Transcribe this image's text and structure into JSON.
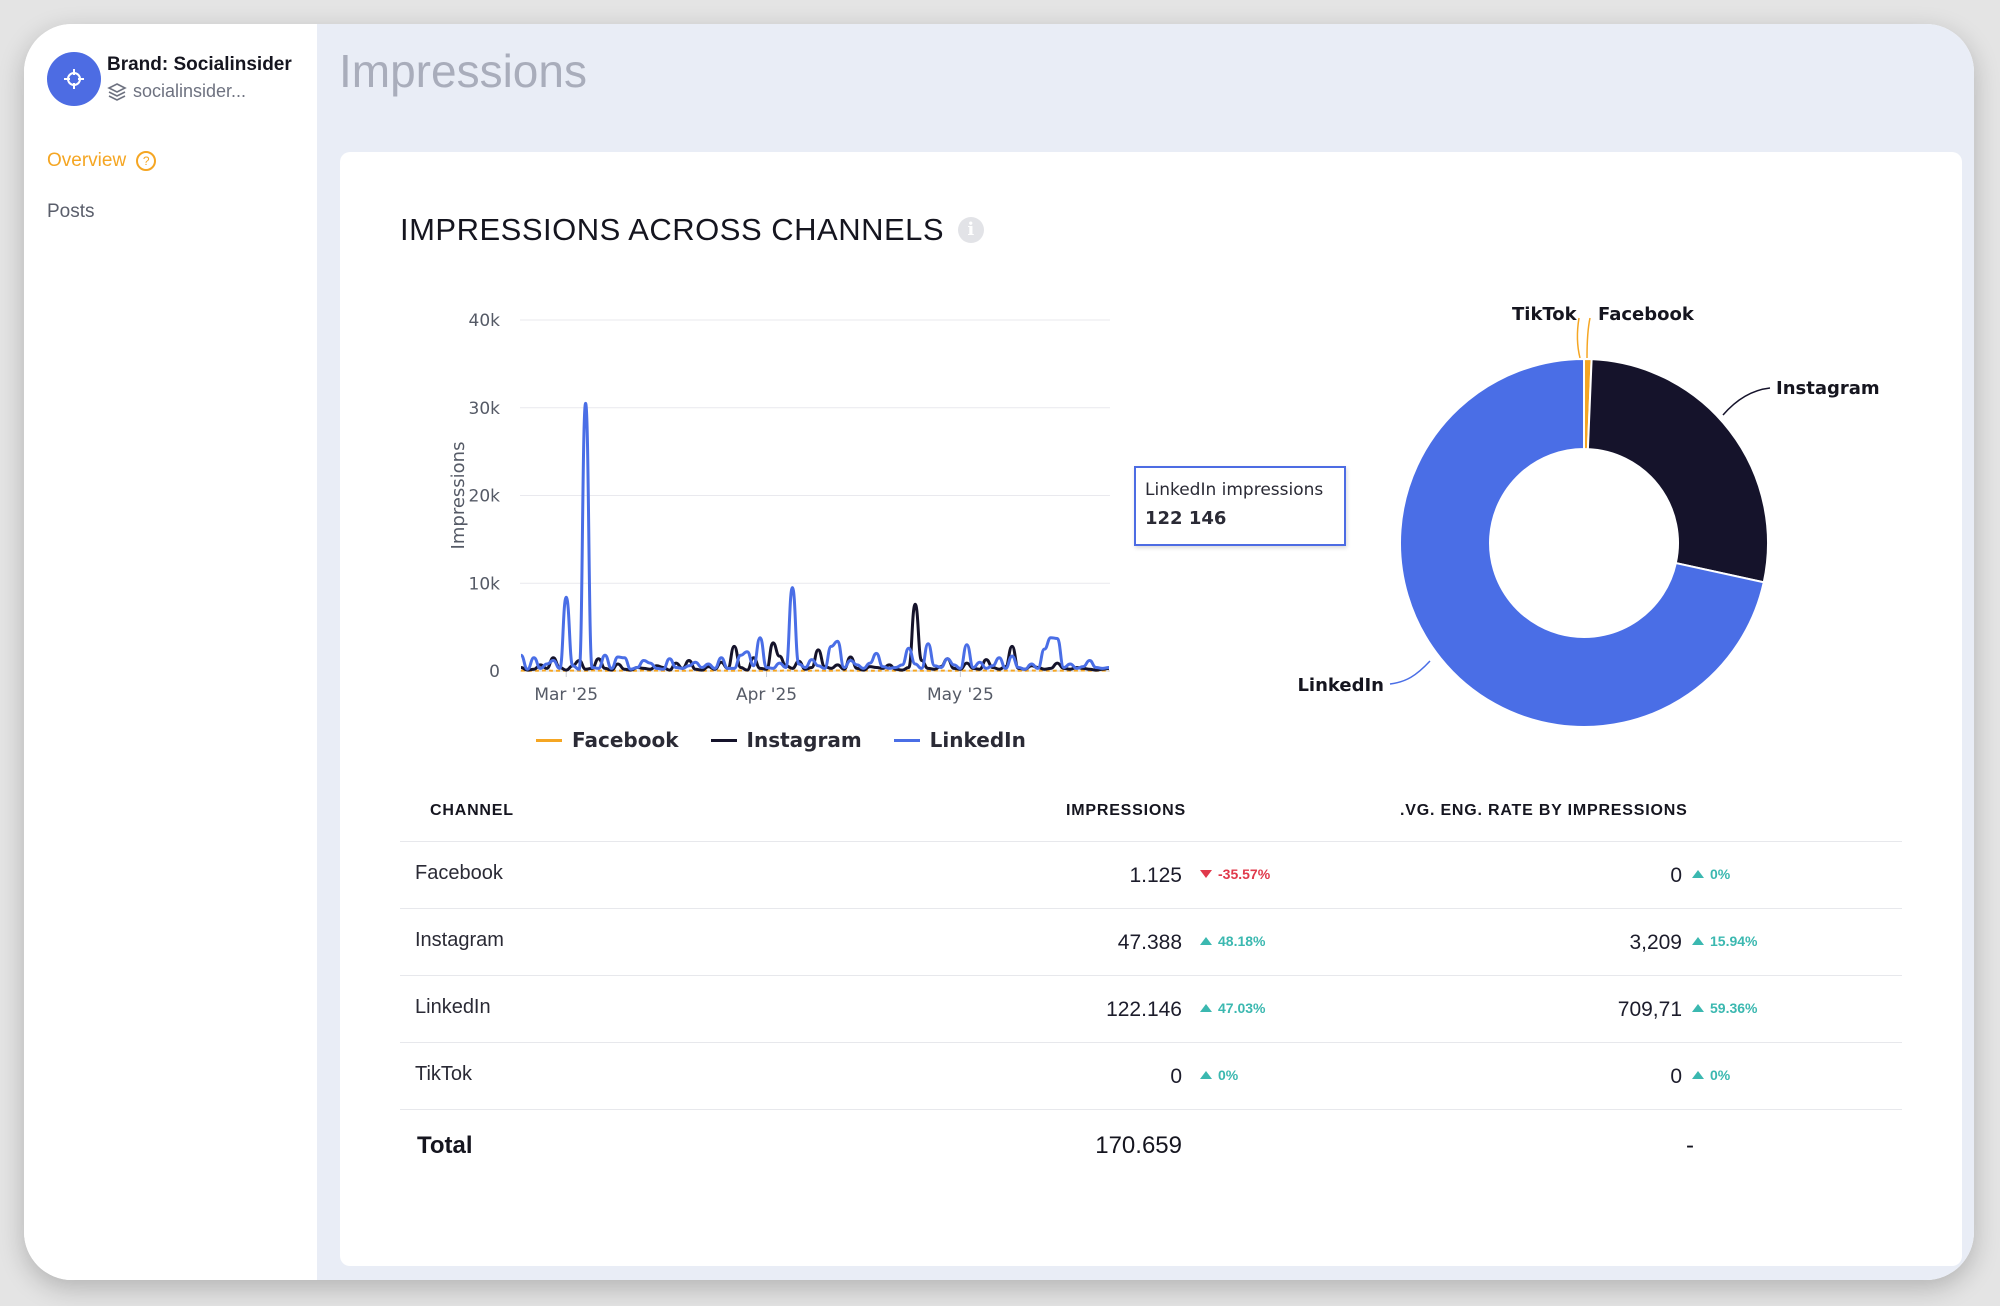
{
  "sidebar": {
    "brand_name": "Brand: Socialinsider",
    "brand_sub": "socialinsider...",
    "avatar_icon": "crosshair-icon",
    "items": [
      {
        "label": "Overview",
        "active": true,
        "icon": "help-circle-icon"
      },
      {
        "label": "Posts",
        "active": false
      }
    ]
  },
  "header": {
    "title": "Impressions"
  },
  "card": {
    "title": "IMPRESSIONS ACROSS CHANNELS",
    "info_icon": "info-icon"
  },
  "colors": {
    "facebook": "#f5a623",
    "instagram": "#15132b",
    "linkedin": "#4a6ee6",
    "tiktok": "#f5a623",
    "accent": "#f5a623",
    "up": "#3bb8b0",
    "down": "#e0394b"
  },
  "tooltip": {
    "label": "LinkedIn impressions",
    "value": "122 146"
  },
  "chart_data": [
    {
      "type": "line",
      "ylabel": "Impressions",
      "ylim": [
        0,
        40000
      ],
      "y_ticks": [
        "0",
        "10k",
        "20k",
        "30k",
        "40k"
      ],
      "x_ticks": [
        "Mar '25",
        "Apr '25",
        "May '25"
      ],
      "x_tick_index": [
        7,
        38,
        68
      ],
      "x": [
        "2025-02-22",
        "2025-02-23",
        "2025-02-24",
        "2025-02-25",
        "2025-02-26",
        "2025-02-27",
        "2025-02-28",
        "2025-03-01",
        "2025-03-02",
        "2025-03-03",
        "2025-03-04",
        "2025-03-05",
        "2025-03-06",
        "2025-03-07",
        "2025-03-08",
        "2025-03-09",
        "2025-03-10",
        "2025-03-11",
        "2025-03-12",
        "2025-03-13",
        "2025-03-14",
        "2025-03-15",
        "2025-03-16",
        "2025-03-17",
        "2025-03-18",
        "2025-03-19",
        "2025-03-20",
        "2025-03-21",
        "2025-03-22",
        "2025-03-23",
        "2025-03-24",
        "2025-03-25",
        "2025-03-26",
        "2025-03-27",
        "2025-03-28",
        "2025-03-29",
        "2025-03-30",
        "2025-03-31",
        "2025-04-01",
        "2025-04-02",
        "2025-04-03",
        "2025-04-04",
        "2025-04-05",
        "2025-04-06",
        "2025-04-07",
        "2025-04-08",
        "2025-04-09",
        "2025-04-10",
        "2025-04-11",
        "2025-04-12",
        "2025-04-13",
        "2025-04-14",
        "2025-04-15",
        "2025-04-16",
        "2025-04-17",
        "2025-04-18",
        "2025-04-19",
        "2025-04-20",
        "2025-04-21",
        "2025-04-22",
        "2025-04-23",
        "2025-04-24",
        "2025-04-25",
        "2025-04-26",
        "2025-04-27",
        "2025-04-28",
        "2025-04-29",
        "2025-04-30",
        "2025-05-01",
        "2025-05-02",
        "2025-05-03",
        "2025-05-04",
        "2025-05-05",
        "2025-05-06",
        "2025-05-07",
        "2025-05-08",
        "2025-05-09",
        "2025-05-10",
        "2025-05-11",
        "2025-05-12",
        "2025-05-13",
        "2025-05-14",
        "2025-05-15",
        "2025-05-16",
        "2025-05-17",
        "2025-05-18",
        "2025-05-19",
        "2025-05-20",
        "2025-05-21",
        "2025-05-22",
        "2025-05-23",
        "2025-05-24"
      ],
      "series": [
        {
          "name": "Facebook",
          "values": [
            50,
            30,
            20,
            40,
            60,
            30,
            20,
            50,
            40,
            30,
            20,
            60,
            40,
            30,
            20,
            50,
            40,
            30,
            20,
            60,
            30,
            40,
            20,
            50,
            30,
            20,
            40,
            60,
            30,
            20,
            50,
            40,
            30,
            20,
            60,
            40,
            30,
            20,
            50,
            40,
            30,
            60,
            40,
            30,
            20,
            50,
            40,
            30,
            20,
            60,
            30,
            40,
            20,
            50,
            30,
            20,
            40,
            60,
            30,
            20,
            50,
            40,
            30,
            20,
            60,
            40,
            30,
            20,
            50,
            40,
            30,
            60,
            40,
            30,
            20,
            50,
            40,
            30,
            20,
            60,
            30,
            40,
            20,
            50,
            30,
            20,
            40,
            60,
            30,
            20,
            50,
            40
          ]
        },
        {
          "name": "Instagram",
          "values": [
            400,
            100,
            200,
            700,
            300,
            1500,
            400,
            100,
            600,
            1200,
            200,
            300,
            1400,
            300,
            100,
            800,
            200,
            100,
            400,
            300,
            200,
            600,
            400,
            100,
            900,
            300,
            1200,
            200,
            100,
            500,
            200,
            1000,
            300,
            2800,
            400,
            100,
            1500,
            300,
            200,
            3200,
            1700,
            600,
            300,
            1100,
            200,
            400,
            2400,
            500,
            300,
            700,
            200,
            1600,
            300,
            100,
            500,
            400,
            300,
            700,
            200,
            100,
            400,
            7600,
            1200,
            300,
            200,
            500,
            1400,
            300,
            200,
            900,
            300,
            200,
            1300,
            400,
            200,
            500,
            2800,
            300,
            200,
            600,
            400,
            200,
            300,
            900,
            300,
            200,
            400,
            300,
            200,
            100,
            200,
            300
          ]
        },
        {
          "name": "LinkedIn",
          "values": [
            1800,
            200,
            1500,
            300,
            800,
            1200,
            300,
            8400,
            600,
            200,
            30500,
            400,
            300,
            1800,
            300,
            1600,
            1500,
            200,
            400,
            1200,
            900,
            300,
            200,
            1400,
            400,
            300,
            600,
            1000,
            400,
            800,
            300,
            1500,
            300,
            300,
            1800,
            2200,
            600,
            3800,
            400,
            300,
            900,
            400,
            9500,
            800,
            400,
            1300,
            600,
            300,
            2800,
            3400,
            400,
            1200,
            700,
            300,
            900,
            2000,
            500,
            300,
            400,
            700,
            2600,
            800,
            300,
            3100,
            600,
            400,
            1400,
            700,
            300,
            3000,
            400,
            1000,
            300,
            600,
            1500,
            300,
            1700,
            400,
            200,
            800,
            300,
            2500,
            3800,
            3700,
            400,
            800,
            300,
            500,
            1200,
            400,
            300,
            400
          ]
        }
      ]
    },
    {
      "type": "pie",
      "variant": "donut",
      "categories": [
        "TikTok",
        "Facebook",
        "Instagram",
        "LinkedIn"
      ],
      "values": [
        0,
        1125,
        47388,
        122146
      ]
    }
  ],
  "table": {
    "headers": {
      "channel": "CHANNEL",
      "impressions": "IMPRESSIONS",
      "rate": ".VG. ENG. RATE BY IMPRESSIONS"
    },
    "rows": [
      {
        "channel": "Facebook",
        "impressions": "1.125",
        "imp_delta": "-35.57%",
        "imp_dir": "down",
        "rate": "0",
        "rate_delta": "0%",
        "rate_dir": "up"
      },
      {
        "channel": "Instagram",
        "impressions": "47.388",
        "imp_delta": "48.18%",
        "imp_dir": "up",
        "rate": "3,209",
        "rate_delta": "15.94%",
        "rate_dir": "up"
      },
      {
        "channel": "LinkedIn",
        "impressions": "122.146",
        "imp_delta": "47.03%",
        "imp_dir": "up",
        "rate": "709,71",
        "rate_delta": "59.36%",
        "rate_dir": "up"
      },
      {
        "channel": "TikTok",
        "impressions": "0",
        "imp_delta": "0%",
        "imp_dir": "up",
        "rate": "0",
        "rate_delta": "0%",
        "rate_dir": "up"
      }
    ],
    "total": {
      "label": "Total",
      "impressions": "170.659",
      "rate": "-"
    }
  }
}
